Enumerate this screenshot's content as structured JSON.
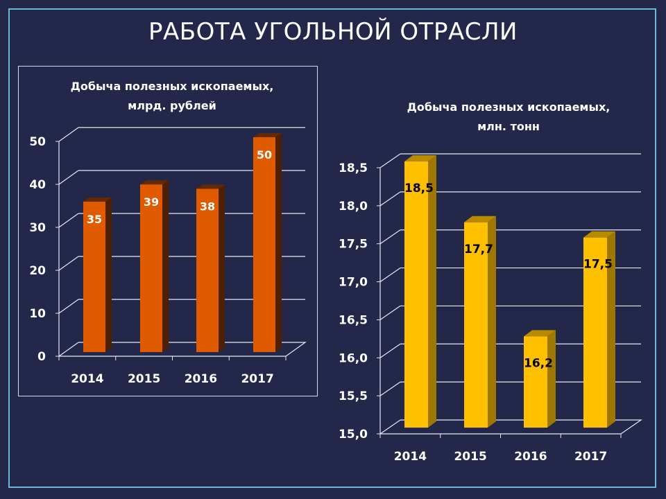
{
  "title": "РАБОТА УГОЛЬНОЙ ОТРАСЛИ",
  "chart_data": [
    {
      "type": "bar",
      "title": [
        "Добыча полезных ископаемых,",
        "млрд. рублей"
      ],
      "categories": [
        "2014",
        "2015",
        "2016",
        "2017"
      ],
      "values": [
        35,
        39,
        38,
        50
      ],
      "data_labels": [
        "35",
        "39",
        "38",
        "50"
      ],
      "yticks": [
        "0",
        "10",
        "20",
        "30",
        "40",
        "50"
      ],
      "ylim": [
        0,
        50
      ],
      "color": "#e05a00",
      "label_color": "#ffffff",
      "grid": true,
      "legend": "none"
    },
    {
      "type": "bar",
      "title": [
        "Добыча полезных ископаемых,",
        "млн. тонн"
      ],
      "categories": [
        "2014",
        "2015",
        "2016",
        "2017"
      ],
      "values": [
        18.5,
        17.7,
        16.2,
        17.5
      ],
      "data_labels": [
        "18,5",
        "17,7",
        "16,2",
        "17,5"
      ],
      "yticks": [
        "15,0",
        "15,5",
        "16,0",
        "16,5",
        "17,0",
        "17,5",
        "18,0",
        "18,5"
      ],
      "ylim": [
        15,
        18.5
      ],
      "color": "#ffc000",
      "label_color": "#000000",
      "grid": true,
      "legend": "none"
    }
  ]
}
